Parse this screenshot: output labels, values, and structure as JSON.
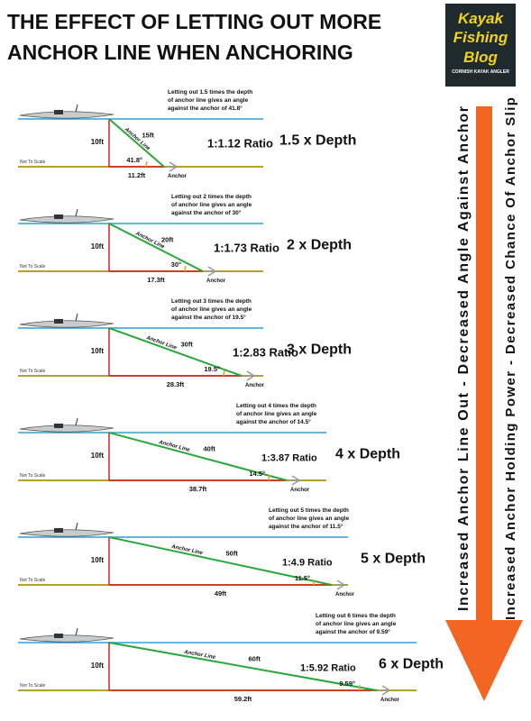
{
  "header": {
    "title_lines": [
      "THE EFFECT OF LETTING OUT MORE",
      "ANCHOR LINE WHEN ANCHORING"
    ]
  },
  "logo": {
    "lines": [
      "Kayak",
      "Fishing",
      "Blog"
    ],
    "tagline": "CORNISH KAYAK ANGLER"
  },
  "side_texts": [
    "Increased Anchor Line Out - Decreased Angle Against Anchor",
    "Increased Anchor Holding Power - Decreased Chance Of Anchor Slip"
  ],
  "panels": [
    {
      "note": [
        "Letting out 1.5 times the depth",
        "of anchor line gives an angle",
        "against the anchor of 41.8°"
      ],
      "depth": "10ft",
      "line_length": "15ft",
      "angle": "41.8°",
      "horizontal": "11.2ft",
      "line_label": "Anchor Line",
      "anchor_label": "Anchor",
      "scale_note": "Not To Scale",
      "ratio": "1:1.12 Ratio",
      "multiplier": "1.5 x Depth"
    },
    {
      "note": [
        "Letting out 2 times the depth",
        "of anchor line gives an angle",
        "against the anchor of 30°"
      ],
      "depth": "10ft",
      "line_length": "20ft",
      "angle": "30°",
      "horizontal": "17.3ft",
      "line_label": "Anchor Line",
      "anchor_label": "Anchor",
      "scale_note": "Not To Scale",
      "ratio": "1:1.73 Ratio",
      "multiplier": "2 x Depth"
    },
    {
      "note": [
        "Letting out 3 times the depth",
        "of anchor line gives an angle",
        "against the anchor of 19.5°"
      ],
      "depth": "10ft",
      "line_length": "30ft",
      "angle": "19.5°",
      "horizontal": "28.3ft",
      "line_label": "Anchor Line",
      "anchor_label": "Anchor",
      "scale_note": "Not To Scale",
      "ratio": "1:2.83 Ratio",
      "multiplier": "3 x Depth"
    },
    {
      "note": [
        "Letting out 4 times the depth",
        "of anchor line gives an angle",
        "against the anchor of 14.5°"
      ],
      "depth": "10ft",
      "line_length": "40ft",
      "angle": "14.5°",
      "horizontal": "38.7ft",
      "line_label": "Anchor Line",
      "anchor_label": "Anchor",
      "scale_note": "Not To Scale",
      "ratio": "1:3.87 Ratio",
      "multiplier": "4 x Depth"
    },
    {
      "note": [
        "Letting out 5 times the depth",
        "of anchor line gives an angle",
        "against the anchor of 11.5°"
      ],
      "depth": "10ft",
      "line_length": "50ft",
      "angle": "11.5°",
      "horizontal": "49ft",
      "line_label": "Anchor Line",
      "anchor_label": "Anchor",
      "scale_note": "Not To Scale",
      "ratio": "1:4.9 Ratio",
      "multiplier": "5 x Depth"
    },
    {
      "note": [
        "Letting out 6 times the depth",
        "of anchor line gives an angle",
        "against the anchor of 9.59°"
      ],
      "depth": "10ft",
      "line_length": "60ft",
      "angle": "9.59°",
      "horizontal": "59.2ft",
      "line_label": "Anchor Line",
      "anchor_label": "Anchor",
      "scale_note": "Not To Scale",
      "ratio": "1:5.92 Ratio",
      "multiplier": "6 x Depth"
    }
  ]
}
